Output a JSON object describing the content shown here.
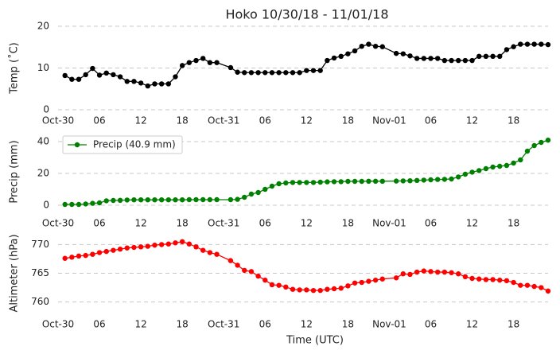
{
  "chart_data": [
    {
      "type": "line",
      "title": "Hoko 10/30/18 - 11/01/18",
      "ylabel": "Temp ($^\\circ$C)",
      "color": "#000000",
      "x": [
        1,
        2,
        3,
        4,
        5,
        6,
        7,
        8,
        9,
        10,
        11,
        12,
        13,
        14,
        15,
        16,
        17,
        18,
        19,
        20,
        21,
        22,
        23,
        25,
        26,
        27,
        28,
        29,
        30,
        31,
        32,
        33,
        34,
        35,
        36,
        37,
        38,
        39,
        40,
        41,
        42,
        43,
        44,
        45,
        46,
        47,
        49,
        50,
        51,
        52,
        53,
        54,
        55,
        56,
        57,
        58,
        59,
        60,
        61,
        62,
        63,
        64,
        65,
        66,
        67,
        68,
        69,
        70,
        71
      ],
      "values": [
        8.2,
        7.3,
        7.3,
        8.4,
        9.9,
        8.3,
        8.8,
        8.4,
        7.9,
        6.8,
        6.8,
        6.4,
        5.7,
        6.2,
        6.2,
        6.2,
        7.9,
        10.6,
        11.3,
        11.8,
        12.3,
        11.3,
        11.3,
        10.1,
        9,
        8.9,
        8.9,
        8.9,
        8.9,
        8.9,
        8.9,
        8.9,
        8.9,
        8.9,
        9.4,
        9.4,
        9.4,
        11.8,
        12.4,
        12.8,
        13.4,
        14.1,
        15.2,
        15.7,
        15.2,
        15.1,
        13.5,
        13.4,
        12.9,
        12.3,
        12.3,
        12.3,
        12.3,
        11.8,
        11.8,
        11.8,
        11.8,
        11.8,
        12.8,
        12.8,
        12.8,
        12.8,
        14.4,
        15.1,
        15.7,
        15.7,
        15.7,
        15.7,
        15.6
      ],
      "xlim": [
        0,
        71
      ],
      "xticks": [
        {
          "value": 0,
          "label": "Oct-30"
        },
        {
          "value": 6,
          "label": "06"
        },
        12,
        18,
        {
          "value": 24,
          "label": "Oct-31"
        },
        {
          "value": 30,
          "label": "06"
        },
        {
          "value": 36,
          "label": "12"
        },
        {
          "value": 42,
          "label": "18"
        },
        {
          "value": 48,
          "label": "Nov-01"
        },
        {
          "value": 54,
          "label": "06"
        },
        {
          "value": 60,
          "label": "12"
        },
        {
          "value": 66,
          "label": "18"
        }
      ],
      "ylim": [
        0,
        20
      ],
      "yticks": [
        0,
        10,
        20
      ],
      "grid": true
    },
    {
      "type": "line",
      "ylabel": "Precip (mm)",
      "legend": "upper left",
      "x": [
        1,
        2,
        3,
        4,
        5,
        6,
        7,
        8,
        9,
        10,
        11,
        12,
        13,
        14,
        15,
        16,
        17,
        18,
        19,
        20,
        21,
        22,
        23,
        25,
        26,
        27,
        28,
        29,
        30,
        31,
        32,
        33,
        34,
        35,
        36,
        37,
        38,
        39,
        40,
        41,
        42,
        43,
        44,
        45,
        46,
        47,
        49,
        50,
        51,
        52,
        53,
        54,
        55,
        56,
        57,
        58,
        59,
        60,
        61,
        62,
        63,
        64,
        65,
        66,
        67,
        68,
        69,
        70,
        71
      ],
      "series": [
        {
          "name": "Precip (40.9 mm)",
          "color": "#008000",
          "values": [
            0.5,
            0.5,
            0.5,
            0.8,
            1.2,
            1.5,
            2.8,
            3,
            3.1,
            3.3,
            3.4,
            3.4,
            3.4,
            3.4,
            3.4,
            3.4,
            3.4,
            3.4,
            3.5,
            3.5,
            3.5,
            3.5,
            3.5,
            3.5,
            3.7,
            5,
            7,
            8,
            10,
            12,
            13.5,
            14,
            14.3,
            14.3,
            14.3,
            14.3,
            14.5,
            14.7,
            14.8,
            14.8,
            15,
            15,
            15,
            15.1,
            15.1,
            15.1,
            15.2,
            15.3,
            15.4,
            15.6,
            15.8,
            16,
            16.2,
            16.3,
            16.5,
            17.8,
            19.5,
            20.8,
            21.8,
            23,
            24,
            24.5,
            25,
            26.5,
            28.5,
            34,
            37.5,
            39.5,
            40.9
          ]
        }
      ],
      "xlim": [
        0,
        71
      ],
      "xticks": [
        {
          "value": 0,
          "label": "Oct-30"
        },
        {
          "value": 6,
          "label": "06"
        },
        12,
        18,
        {
          "value": 24,
          "label": "Oct-31"
        },
        {
          "value": 30,
          "label": "06"
        },
        {
          "value": 36,
          "label": "12"
        },
        {
          "value": 42,
          "label": "18"
        },
        {
          "value": 48,
          "label": "Nov-01"
        },
        {
          "value": 54,
          "label": "06"
        },
        {
          "value": 60,
          "label": "12"
        },
        {
          "value": 66,
          "label": "18"
        }
      ],
      "ylim": [
        -3,
        45
      ],
      "yticks": [
        0,
        20,
        40
      ],
      "grid": true
    },
    {
      "type": "line",
      "ylabel": "Altimeter (hPa)",
      "xlabel": "Time (UTC)",
      "color": "#ff0000",
      "x": [
        1,
        2,
        3,
        4,
        5,
        6,
        7,
        8,
        9,
        10,
        11,
        12,
        13,
        14,
        15,
        16,
        17,
        18,
        19,
        20,
        21,
        22,
        23,
        25,
        26,
        27,
        28,
        29,
        30,
        31,
        32,
        33,
        34,
        35,
        36,
        37,
        38,
        39,
        40,
        41,
        42,
        43,
        44,
        45,
        46,
        47,
        49,
        50,
        51,
        52,
        53,
        54,
        55,
        56,
        57,
        58,
        59,
        60,
        61,
        62,
        63,
        64,
        65,
        66,
        67,
        68,
        69,
        70,
        71
      ],
      "values": [
        767.6,
        767.8,
        768,
        768.1,
        768.3,
        768.6,
        768.8,
        769,
        769.2,
        769.4,
        769.5,
        769.6,
        769.7,
        769.9,
        770,
        770.1,
        770.3,
        770.5,
        770.1,
        769.6,
        769,
        768.6,
        768.3,
        767.2,
        766.4,
        765.5,
        765.3,
        764.5,
        763.8,
        763,
        762.9,
        762.6,
        762.2,
        762.1,
        762.1,
        762,
        762,
        762.2,
        762.3,
        762.4,
        762.8,
        763.3,
        763.4,
        763.6,
        763.8,
        764,
        764.2,
        764.9,
        764.8,
        765.2,
        765.4,
        765.3,
        765.2,
        765.2,
        765.1,
        764.9,
        764.4,
        764.1,
        764,
        763.9,
        763.9,
        763.8,
        763.7,
        763.4,
        762.9,
        762.9,
        762.7,
        762.5,
        761.9
      ],
      "xlim": [
        0,
        71
      ],
      "xticks": [
        {
          "value": 0,
          "label": "Oct-30"
        },
        {
          "value": 6,
          "label": "06"
        },
        12,
        18,
        {
          "value": 24,
          "label": "Oct-31"
        },
        {
          "value": 30,
          "label": "06"
        },
        {
          "value": 36,
          "label": "12"
        },
        {
          "value": 42,
          "label": "18"
        },
        {
          "value": 48,
          "label": "Nov-01"
        },
        {
          "value": 54,
          "label": "06"
        },
        {
          "value": 60,
          "label": "12"
        },
        {
          "value": 66,
          "label": "18"
        }
      ],
      "ylim": [
        758,
        772
      ],
      "yticks": [
        760,
        765,
        770
      ],
      "grid": true
    }
  ]
}
